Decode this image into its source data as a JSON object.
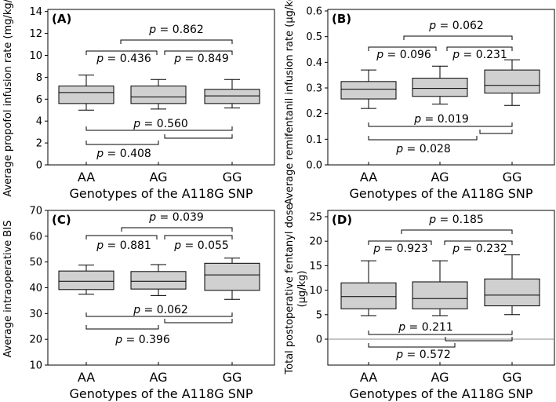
{
  "chart_data": [
    {
      "type": "box",
      "panel": "(A)",
      "xlabel": "Genotypes of the A118G SNP",
      "ylabel": "Average propofol infusion rate (mg/kg/min)",
      "categories": [
        "AA",
        "AG",
        "GG"
      ],
      "yticks": [
        "0",
        "2",
        "4",
        "6",
        "8",
        "10",
        "12",
        "14"
      ],
      "ylim": [
        0,
        14.5
      ],
      "boxes": [
        {
          "name": "AA",
          "whisker_low": 5.0,
          "q1": 5.6,
          "median": 6.6,
          "q3": 7.2,
          "whisker_high": 8.2
        },
        {
          "name": "AG",
          "whisker_low": 5.1,
          "q1": 5.6,
          "median": 6.2,
          "q3": 7.2,
          "whisker_high": 7.8
        },
        {
          "name": "GG",
          "whisker_low": 5.2,
          "q1": 5.6,
          "median": 6.3,
          "q3": 6.9,
          "whisker_high": 7.8
        }
      ],
      "comparisons": [
        {
          "text": "p = 0.862"
        },
        {
          "text": "p = 0.436"
        },
        {
          "text": "p = 0.849"
        },
        {
          "text": "p = 0.560"
        },
        {
          "text": "p = 0.408"
        }
      ]
    },
    {
      "type": "box",
      "panel": "(B)",
      "xlabel": "Genotypes of the A118G SNP",
      "ylabel": "Average remifentanil infusion rate (μg/kg/min)",
      "categories": [
        "AA",
        "AG",
        "GG"
      ],
      "yticks": [
        "0.0",
        "0.1",
        "0.2",
        "0.3",
        "0.4",
        "0.5",
        "0.6"
      ],
      "ylim": [
        0,
        0.6
      ],
      "boxes": [
        {
          "name": "AA",
          "whisker_low": 0.22,
          "q1": 0.257,
          "median": 0.295,
          "q3": 0.325,
          "whisker_high": 0.37
        },
        {
          "name": "AG",
          "whisker_low": 0.237,
          "q1": 0.267,
          "median": 0.298,
          "q3": 0.338,
          "whisker_high": 0.385
        },
        {
          "name": "GG",
          "whisker_low": 0.232,
          "q1": 0.28,
          "median": 0.31,
          "q3": 0.37,
          "whisker_high": 0.41
        }
      ],
      "comparisons": [
        {
          "text": "p = 0.062"
        },
        {
          "text": "p = 0.096"
        },
        {
          "text": "p = 0.231"
        },
        {
          "text": "p = 0.019"
        },
        {
          "text": "p = 0.028"
        }
      ]
    },
    {
      "type": "box",
      "panel": "(C)",
      "xlabel": "Genotypes of the A118G SNP",
      "ylabel": "Average intraoperative BIS",
      "categories": [
        "AA",
        "AG",
        "GG"
      ],
      "yticks": [
        "10",
        "20",
        "30",
        "40",
        "50",
        "60",
        "70"
      ],
      "ylim": [
        10,
        70
      ],
      "boxes": [
        {
          "name": "AA",
          "whisker_low": 37.5,
          "q1": 39.3,
          "median": 42.5,
          "q3": 46.5,
          "whisker_high": 48.8
        },
        {
          "name": "AG",
          "whisker_low": 37.0,
          "q1": 39.5,
          "median": 42.5,
          "q3": 46.3,
          "whisker_high": 49.0
        },
        {
          "name": "GG",
          "whisker_low": 35.5,
          "q1": 39.0,
          "median": 45.0,
          "q3": 49.5,
          "whisker_high": 51.5
        }
      ],
      "comparisons": [
        {
          "text": "p = 0.039"
        },
        {
          "text": "p = 0.881"
        },
        {
          "text": "p = 0.055"
        },
        {
          "text": "p = 0.062"
        },
        {
          "text": "p = 0.396"
        }
      ]
    },
    {
      "type": "box",
      "panel": "(D)",
      "xlabel": "Genotypes of the A118G SNP",
      "ylabel": "Total postoperative fentanyl dose (μg/kg)",
      "categories": [
        "AA",
        "AG",
        "GG"
      ],
      "yticks": [
        "0",
        "5",
        "10",
        "15",
        "20",
        "25"
      ],
      "ylim": [
        -8.5,
        29
      ],
      "reference_line": 0,
      "boxes": [
        {
          "name": "AA",
          "whisker_low": 4.8,
          "q1": 6.2,
          "median": 8.7,
          "q3": 11.5,
          "whisker_high": 16.0
        },
        {
          "name": "AG",
          "whisker_low": 4.8,
          "q1": 6.2,
          "median": 8.3,
          "q3": 11.7,
          "whisker_high": 16.0
        },
        {
          "name": "GG",
          "whisker_low": 5.0,
          "q1": 6.8,
          "median": 9.0,
          "q3": 12.3,
          "whisker_high": 17.2
        }
      ],
      "comparisons": [
        {
          "text": "p = 0.185"
        },
        {
          "text": "p = 0.923"
        },
        {
          "text": "p = 0.232"
        },
        {
          "text": "p = 0.211"
        },
        {
          "text": "p = 0.572"
        }
      ]
    }
  ]
}
